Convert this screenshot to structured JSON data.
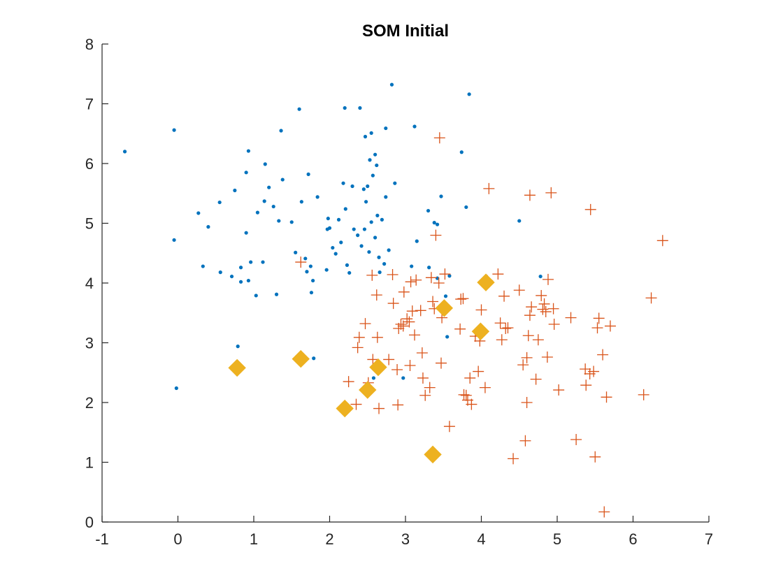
{
  "chart_data": {
    "type": "scatter",
    "title": "SOM Initial",
    "xlabel": "",
    "ylabel": "",
    "xlim": [
      -1,
      7
    ],
    "ylim": [
      0,
      8
    ],
    "xticks": [
      -1,
      0,
      1,
      2,
      3,
      4,
      5,
      6,
      7
    ],
    "yticks": [
      0,
      1,
      2,
      3,
      4,
      5,
      6,
      7,
      8
    ],
    "grid": false,
    "legend": "none",
    "series": [
      {
        "marker": "dot",
        "color": "#0072BD",
        "points": [
          [
            -0.7,
            6.2
          ],
          [
            -0.05,
            6.56
          ],
          [
            -0.05,
            4.72
          ],
          [
            -0.02,
            2.24
          ],
          [
            0.27,
            5.17
          ],
          [
            0.33,
            4.28
          ],
          [
            0.4,
            4.94
          ],
          [
            0.55,
            5.35
          ],
          [
            0.56,
            4.18
          ],
          [
            0.71,
            4.11
          ],
          [
            0.75,
            5.55
          ],
          [
            0.79,
            2.94
          ],
          [
            0.83,
            4.26
          ],
          [
            0.83,
            4.02
          ],
          [
            0.9,
            5.85
          ],
          [
            0.9,
            4.84
          ],
          [
            0.93,
            6.21
          ],
          [
            0.93,
            4.04
          ],
          [
            0.96,
            4.35
          ],
          [
            1.03,
            3.79
          ],
          [
            1.05,
            5.18
          ],
          [
            1.12,
            4.35
          ],
          [
            1.14,
            5.37
          ],
          [
            1.15,
            5.99
          ],
          [
            1.2,
            5.6
          ],
          [
            1.26,
            5.28
          ],
          [
            1.3,
            3.81
          ],
          [
            1.33,
            5.04
          ],
          [
            1.36,
            6.55
          ],
          [
            1.38,
            5.73
          ],
          [
            1.5,
            5.02
          ],
          [
            1.55,
            4.51
          ],
          [
            1.6,
            6.91
          ],
          [
            1.63,
            5.36
          ],
          [
            1.68,
            4.41
          ],
          [
            1.7,
            4.19
          ],
          [
            1.72,
            5.82
          ],
          [
            1.75,
            4.28
          ],
          [
            1.76,
            3.84
          ],
          [
            1.78,
            4.04
          ],
          [
            1.79,
            2.74
          ],
          [
            1.84,
            5.44
          ],
          [
            1.96,
            4.22
          ],
          [
            1.97,
            4.9
          ],
          [
            1.98,
            5.08
          ],
          [
            2.0,
            4.92
          ],
          [
            2.04,
            4.59
          ],
          [
            2.08,
            4.49
          ],
          [
            2.12,
            5.06
          ],
          [
            2.15,
            4.68
          ],
          [
            2.18,
            5.67
          ],
          [
            2.2,
            6.93
          ],
          [
            2.21,
            5.24
          ],
          [
            2.23,
            4.3
          ],
          [
            2.26,
            4.17
          ],
          [
            2.3,
            5.62
          ],
          [
            2.32,
            4.9
          ],
          [
            2.37,
            4.8
          ],
          [
            2.4,
            6.93
          ],
          [
            2.42,
            4.62
          ],
          [
            2.45,
            5.57
          ],
          [
            2.46,
            4.9
          ],
          [
            2.47,
            6.45
          ],
          [
            2.48,
            5.36
          ],
          [
            2.5,
            5.62
          ],
          [
            2.52,
            4.52
          ],
          [
            2.53,
            6.06
          ],
          [
            2.55,
            6.51
          ],
          [
            2.55,
            5.02
          ],
          [
            2.57,
            5.8
          ],
          [
            2.58,
            2.41
          ],
          [
            2.6,
            6.15
          ],
          [
            2.6,
            4.76
          ],
          [
            2.62,
            5.97
          ],
          [
            2.63,
            5.13
          ],
          [
            2.65,
            4.43
          ],
          [
            2.66,
            4.18
          ],
          [
            2.69,
            5.06
          ],
          [
            2.72,
            4.32
          ],
          [
            2.74,
            6.59
          ],
          [
            2.74,
            5.44
          ],
          [
            2.78,
            4.55
          ],
          [
            2.82,
            7.32
          ],
          [
            2.86,
            5.67
          ],
          [
            2.97,
            2.41
          ],
          [
            3.08,
            4.28
          ],
          [
            3.12,
            6.62
          ],
          [
            3.15,
            4.7
          ],
          [
            3.3,
            5.21
          ],
          [
            3.31,
            4.26
          ],
          [
            3.38,
            5.01
          ],
          [
            3.42,
            4.98
          ],
          [
            3.42,
            4.08
          ],
          [
            3.47,
            5.45
          ],
          [
            3.5,
            3.67
          ],
          [
            3.53,
            3.78
          ],
          [
            3.55,
            3.1
          ],
          [
            3.58,
            4.12
          ],
          [
            3.74,
            6.19
          ],
          [
            3.8,
            5.27
          ],
          [
            3.84,
            7.16
          ],
          [
            4.5,
            5.04
          ],
          [
            4.78,
            4.11
          ]
        ]
      },
      {
        "marker": "plus",
        "color": "#D95319",
        "points": [
          [
            1.62,
            4.35
          ],
          [
            2.25,
            2.35
          ],
          [
            2.35,
            1.97
          ],
          [
            2.37,
            2.92
          ],
          [
            2.39,
            3.09
          ],
          [
            2.47,
            3.32
          ],
          [
            2.51,
            2.33
          ],
          [
            2.56,
            4.13
          ],
          [
            2.57,
            2.72
          ],
          [
            2.62,
            3.8
          ],
          [
            2.63,
            3.09
          ],
          [
            2.65,
            1.9
          ],
          [
            2.78,
            2.72
          ],
          [
            2.83,
            4.14
          ],
          [
            2.84,
            3.66
          ],
          [
            2.89,
            2.55
          ],
          [
            2.9,
            1.96
          ],
          [
            2.91,
            3.24
          ],
          [
            2.94,
            3.31
          ],
          [
            2.97,
            3.28
          ],
          [
            2.98,
            3.85
          ],
          [
            3.02,
            3.4
          ],
          [
            3.05,
            3.35
          ],
          [
            3.06,
            2.62
          ],
          [
            3.07,
            4.02
          ],
          [
            3.09,
            3.53
          ],
          [
            3.12,
            3.13
          ],
          [
            3.14,
            4.05
          ],
          [
            3.2,
            3.54
          ],
          [
            3.22,
            2.83
          ],
          [
            3.23,
            2.41
          ],
          [
            3.26,
            2.12
          ],
          [
            3.32,
            2.25
          ],
          [
            3.34,
            4.09
          ],
          [
            3.36,
            3.69
          ],
          [
            3.38,
            3.57
          ],
          [
            3.4,
            4.8
          ],
          [
            3.44,
            4.0
          ],
          [
            3.45,
            6.43
          ],
          [
            3.47,
            2.66
          ],
          [
            3.48,
            3.42
          ],
          [
            3.5,
            3.58
          ],
          [
            3.52,
            4.15
          ],
          [
            3.58,
            1.6
          ],
          [
            3.72,
            3.23
          ],
          [
            3.73,
            3.73
          ],
          [
            3.76,
            3.74
          ],
          [
            3.77,
            2.13
          ],
          [
            3.8,
            2.12
          ],
          [
            3.82,
            2.04
          ],
          [
            3.85,
            2.41
          ],
          [
            3.87,
            1.97
          ],
          [
            3.92,
            3.11
          ],
          [
            3.96,
            2.52
          ],
          [
            3.98,
            3.03
          ],
          [
            4.0,
            3.55
          ],
          [
            4.05,
            2.25
          ],
          [
            4.08,
            4.04
          ],
          [
            4.1,
            5.58
          ],
          [
            4.22,
            4.15
          ],
          [
            4.25,
            3.33
          ],
          [
            4.27,
            3.05
          ],
          [
            4.3,
            3.78
          ],
          [
            4.32,
            3.24
          ],
          [
            4.35,
            3.25
          ],
          [
            4.42,
            1.06
          ],
          [
            4.5,
            3.88
          ],
          [
            4.55,
            2.63
          ],
          [
            4.58,
            1.36
          ],
          [
            4.6,
            2.75
          ],
          [
            4.6,
            2.0
          ],
          [
            4.62,
            3.12
          ],
          [
            4.64,
            3.46
          ],
          [
            4.64,
            5.47
          ],
          [
            4.66,
            3.6
          ],
          [
            4.72,
            2.39
          ],
          [
            4.75,
            3.05
          ],
          [
            4.79,
            3.79
          ],
          [
            4.81,
            3.56
          ],
          [
            4.83,
            3.65
          ],
          [
            4.85,
            3.52
          ],
          [
            4.87,
            2.76
          ],
          [
            4.88,
            4.06
          ],
          [
            4.92,
            5.51
          ],
          [
            4.95,
            3.57
          ],
          [
            4.96,
            3.31
          ],
          [
            5.02,
            2.21
          ],
          [
            5.18,
            3.42
          ],
          [
            5.25,
            1.38
          ],
          [
            5.37,
            2.56
          ],
          [
            5.38,
            2.29
          ],
          [
            5.43,
            2.48
          ],
          [
            5.44,
            5.23
          ],
          [
            5.48,
            2.52
          ],
          [
            5.5,
            1.09
          ],
          [
            5.53,
            3.25
          ],
          [
            5.55,
            3.41
          ],
          [
            5.6,
            2.8
          ],
          [
            5.62,
            0.17
          ],
          [
            5.65,
            2.09
          ],
          [
            5.7,
            3.28
          ],
          [
            6.14,
            2.13
          ],
          [
            6.24,
            3.75
          ],
          [
            6.39,
            4.71
          ]
        ]
      },
      {
        "marker": "diamond",
        "color": "#EDB120",
        "points": [
          [
            0.78,
            2.58
          ],
          [
            1.62,
            2.73
          ],
          [
            2.2,
            1.9
          ],
          [
            2.5,
            2.21
          ],
          [
            2.64,
            2.59
          ],
          [
            3.36,
            1.13
          ],
          [
            3.51,
            3.58
          ],
          [
            3.99,
            3.19
          ],
          [
            4.06,
            4.01
          ]
        ]
      }
    ]
  }
}
